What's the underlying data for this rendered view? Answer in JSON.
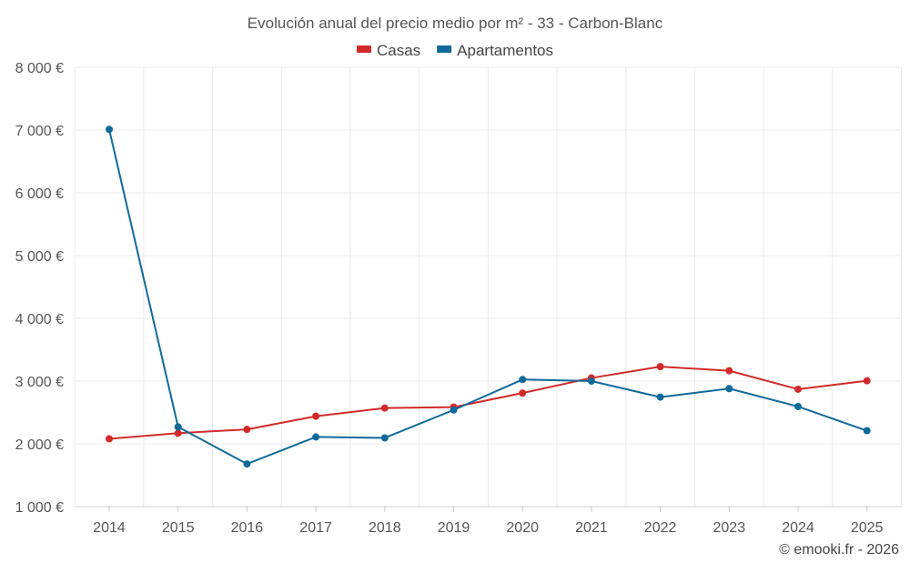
{
  "chart_data": {
    "type": "line",
    "title": "Evolución anual del precio medio por m² - 33 - Carbon-Blanc",
    "categories": [
      "2014",
      "2015",
      "2016",
      "2017",
      "2018",
      "2019",
      "2020",
      "2021",
      "2022",
      "2023",
      "2024",
      "2025"
    ],
    "y_ticks": [
      1000,
      2000,
      3000,
      4000,
      5000,
      6000,
      7000,
      8000
    ],
    "y_tick_labels": [
      "1 000 €",
      "2 000 €",
      "3 000 €",
      "4 000 €",
      "5 000 €",
      "6 000 €",
      "7 000 €",
      "8 000 €"
    ],
    "ylim": [
      1000,
      8000
    ],
    "xlabel": "",
    "ylabel": "",
    "grid": true,
    "legend_position": "top-center",
    "series": [
      {
        "name": "Casas",
        "color": "#d22a2a",
        "values": [
          2080,
          2170,
          2230,
          2440,
          2570,
          2585,
          2810,
          3050,
          3230,
          3165,
          2870,
          3005
        ]
      },
      {
        "name": "Apartamentos",
        "color": "#0f6a9a",
        "values": [
          7010,
          2270,
          1680,
          2110,
          2095,
          2540,
          3025,
          3000,
          2745,
          2880,
          2595,
          2210
        ]
      }
    ]
  },
  "footer": {
    "credit": "© emooki.fr - 2026"
  }
}
